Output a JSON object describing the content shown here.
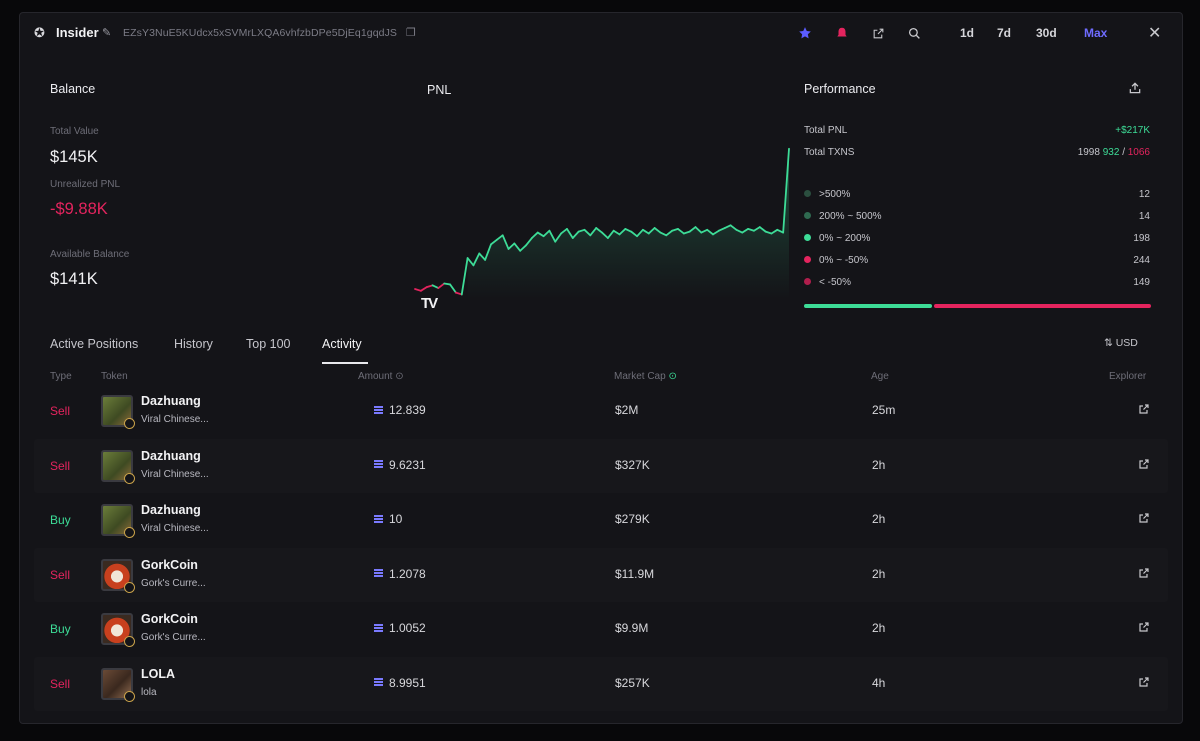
{
  "header": {
    "wallet_name": "Insider",
    "address": "EZsY3NuE5KUdcx5xSVMrLXQA6vhfzbDPe5DjEq1gqdJS",
    "timeframes": [
      "1d",
      "7d",
      "30d",
      "Max"
    ],
    "active_timeframe": "Max"
  },
  "balance": {
    "title": "Balance",
    "total_value_label": "Total Value",
    "total_value": "$145K",
    "unrealized_pnl_label": "Unrealized PNL",
    "unrealized_pnl": "-$9.88K",
    "available_balance_label": "Available Balance",
    "available_balance": "$141K"
  },
  "pnl": {
    "title": "PNL"
  },
  "chart_data": {
    "type": "line",
    "title": "PNL",
    "x": [
      0,
      1,
      2,
      3,
      4,
      5,
      6,
      7,
      8,
      9,
      10,
      11,
      12,
      13,
      14,
      15,
      16,
      17,
      18,
      19,
      20,
      21,
      22,
      23,
      24,
      25,
      26,
      27,
      28,
      29,
      30,
      31,
      32,
      33,
      34,
      35,
      36,
      37,
      38,
      39,
      40,
      41,
      42,
      43,
      44,
      45,
      46,
      47,
      48,
      49,
      50,
      51,
      52,
      53,
      54,
      55,
      56,
      57,
      58,
      59,
      60,
      61,
      62,
      63,
      64
    ],
    "values": [
      -4,
      -6,
      -2,
      0,
      -3,
      2,
      1,
      -8,
      -10,
      30,
      22,
      35,
      28,
      45,
      50,
      55,
      40,
      46,
      38,
      44,
      52,
      58,
      54,
      60,
      48,
      57,
      62,
      52,
      59,
      61,
      55,
      63,
      58,
      52,
      60,
      56,
      62,
      59,
      54,
      61,
      57,
      63,
      58,
      55,
      60,
      62,
      57,
      59,
      64,
      58,
      61,
      56,
      60,
      63,
      66,
      61,
      58,
      62,
      60,
      64,
      59,
      57,
      61,
      58,
      150
    ],
    "colors": {
      "positive": "#3ddc97",
      "negative": "#e4245e"
    },
    "grid": false
  },
  "performance": {
    "title": "Performance",
    "total_pnl_label": "Total PNL",
    "total_pnl": "+$217K",
    "total_txns_label": "Total TXNS",
    "total_txns": "1998",
    "txns_buys": "932",
    "txns_sep": "/",
    "txns_sells": "1066",
    "buckets": [
      {
        "label": ">500%",
        "count": "12",
        "color": "#2b4f3f"
      },
      {
        "label": "200% ~ 500%",
        "count": "14",
        "color": "#2f6a50"
      },
      {
        "label": "0% ~ 200%",
        "count": "198",
        "color": "#3ddc97"
      },
      {
        "label": "0% ~ -50%",
        "count": "244",
        "color": "#e4245e"
      },
      {
        "label": "< -50%",
        "count": "149",
        "color": "#b01e4c"
      }
    ],
    "win_ratio": 0.368
  },
  "tabs": [
    "Active Positions",
    "History",
    "Top 100",
    "Activity"
  ],
  "active_tab": "Activity",
  "currency_toggle": "USD",
  "table": {
    "columns": [
      "Type",
      "Token",
      "Amount",
      "Market Cap",
      "Age",
      "Explorer"
    ],
    "rows": [
      {
        "type": "Sell",
        "token": "Dazhuang",
        "desc": "Viral Chinese...",
        "amount": "12.839",
        "mcap": "$2M",
        "age": "25m",
        "avatar": "dazhuang"
      },
      {
        "type": "Sell",
        "token": "Dazhuang",
        "desc": "Viral Chinese...",
        "amount": "9.6231",
        "mcap": "$327K",
        "age": "2h",
        "avatar": "dazhuang"
      },
      {
        "type": "Buy",
        "token": "Dazhuang",
        "desc": "Viral Chinese...",
        "amount": "10",
        "mcap": "$279K",
        "age": "2h",
        "avatar": "dazhuang"
      },
      {
        "type": "Sell",
        "token": "GorkCoin",
        "desc": "Gork's Curre...",
        "amount": "1.2078",
        "mcap": "$11.9M",
        "age": "2h",
        "avatar": "gork"
      },
      {
        "type": "Buy",
        "token": "GorkCoin",
        "desc": "Gork's Curre...",
        "amount": "1.0052",
        "mcap": "$9.9M",
        "age": "2h",
        "avatar": "gork"
      },
      {
        "type": "Sell",
        "token": "LOLA",
        "desc": "lola",
        "amount": "8.9951",
        "mcap": "$257K",
        "age": "4h",
        "avatar": "lola"
      }
    ]
  }
}
